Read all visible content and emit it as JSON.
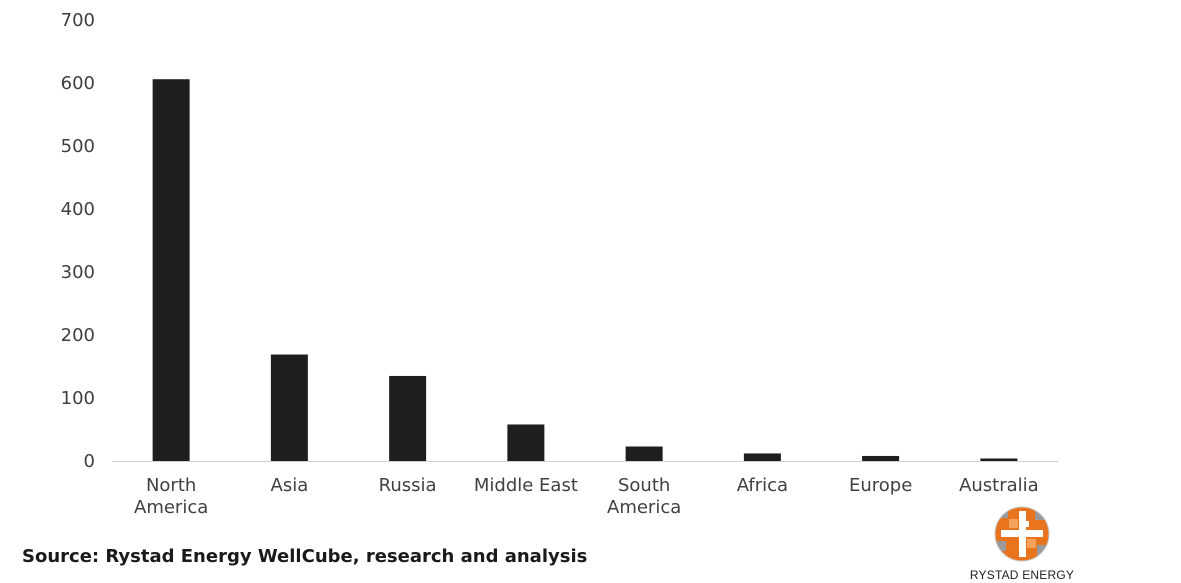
{
  "chart_data": {
    "type": "bar",
    "categories": [
      "North America",
      "Asia",
      "Russia",
      "Middle East",
      "South America",
      "Africa",
      "Europe",
      "Australia"
    ],
    "category_lines": [
      [
        "North",
        "America"
      ],
      [
        "Asia"
      ],
      [
        "Russia"
      ],
      [
        "Middle East"
      ],
      [
        "South",
        "America"
      ],
      [
        "Africa"
      ],
      [
        "Europe"
      ],
      [
        "Australia"
      ]
    ],
    "values": [
      606,
      169,
      135,
      58,
      23,
      12,
      8,
      4
    ],
    "ylim": [
      0,
      700
    ],
    "yticks": [
      0,
      100,
      200,
      300,
      400,
      500,
      600,
      700
    ],
    "bar_color": "#1e1e1e",
    "grid": false,
    "legend": "none"
  },
  "source": "Source: Rystad Energy WellCube, research and analysis",
  "logo": {
    "text": "RYSTAD ENERGY",
    "icon": "rystad-globe-icon",
    "colors": [
      "#e8741e",
      "#f5a25a",
      "#9a9a9a"
    ]
  }
}
